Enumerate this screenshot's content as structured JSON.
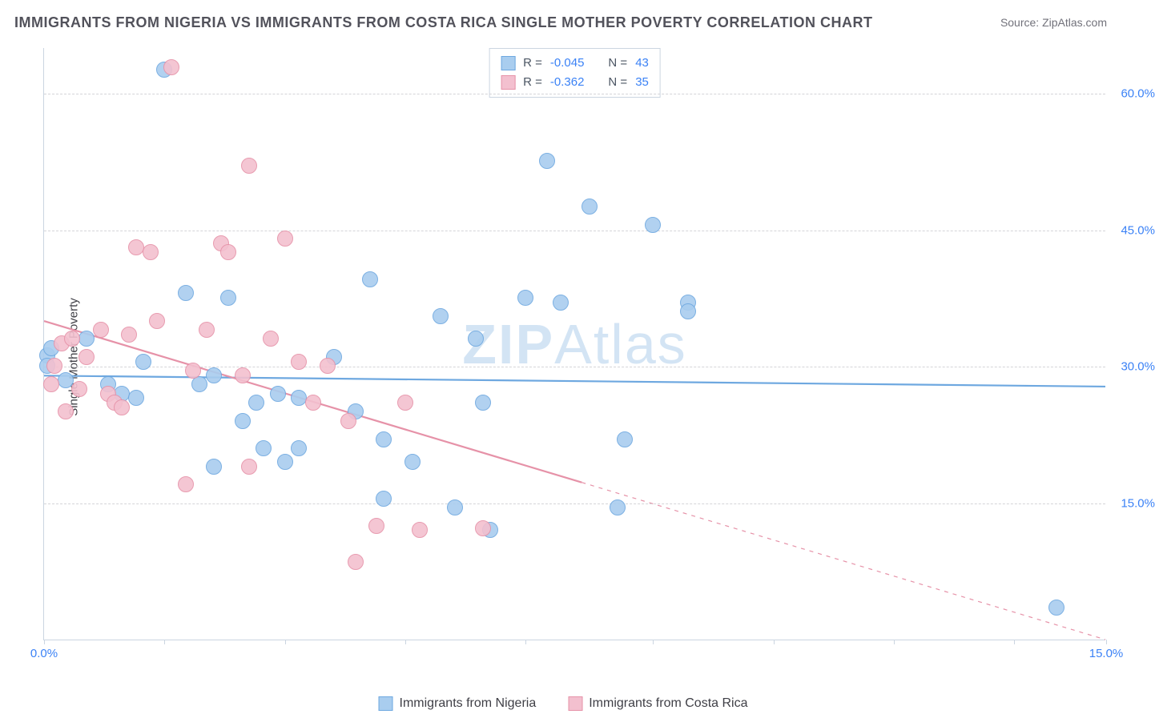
{
  "title": "IMMIGRANTS FROM NIGERIA VS IMMIGRANTS FROM COSTA RICA SINGLE MOTHER POVERTY CORRELATION CHART",
  "source_prefix": "Source: ",
  "source_name": "ZipAtlas.com",
  "ylabel": "Single Mother Poverty",
  "watermark_a": "ZIP",
  "watermark_b": "Atlas",
  "chart": {
    "type": "scatter",
    "xlim": [
      0.0,
      15.0
    ],
    "ylim": [
      0.0,
      65.0
    ],
    "xticks": [
      0.0,
      1.7,
      3.4,
      5.1,
      6.8,
      8.6,
      10.3,
      12.0,
      13.7,
      15.0
    ],
    "xtick_labels_shown": {
      "0.0": "0.0%",
      "15.0": "15.0%"
    },
    "yticks": [
      15.0,
      30.0,
      45.0,
      60.0
    ],
    "ytick_labels": [
      "15.0%",
      "30.0%",
      "45.0%",
      "60.0%"
    ],
    "grid_color": "#d4d4d8",
    "axis_color": "#cbd5e1",
    "background_color": "#ffffff",
    "marker_radius": 10,
    "marker_border": 1.5,
    "marker_fill_opacity": 0.28,
    "trend_line_width": 2.2
  },
  "series": [
    {
      "key": "nigeria",
      "label": "Immigrants from Nigeria",
      "color_border": "#6ea8e0",
      "color_fill": "#a9cdef",
      "R": "-0.045",
      "N": "43",
      "trend": {
        "x1": 0.0,
        "y1": 29.0,
        "x2": 15.0,
        "y2": 27.8,
        "dash_from_x": null
      },
      "points": [
        [
          0.05,
          31.2
        ],
        [
          0.05,
          30.0
        ],
        [
          0.1,
          32.0
        ],
        [
          0.3,
          28.5
        ],
        [
          0.6,
          33.0
        ],
        [
          0.9,
          28.0
        ],
        [
          1.1,
          27.0
        ],
        [
          1.3,
          26.5
        ],
        [
          1.4,
          30.5
        ],
        [
          1.7,
          62.5
        ],
        [
          2.0,
          38.0
        ],
        [
          2.2,
          28.0
        ],
        [
          2.4,
          29.0
        ],
        [
          2.4,
          19.0
        ],
        [
          2.6,
          37.5
        ],
        [
          2.8,
          24.0
        ],
        [
          3.0,
          26.0
        ],
        [
          3.1,
          21.0
        ],
        [
          3.3,
          27.0
        ],
        [
          3.4,
          19.5
        ],
        [
          3.6,
          21.0
        ],
        [
          3.6,
          26.5
        ],
        [
          4.1,
          31.0
        ],
        [
          4.4,
          25.0
        ],
        [
          4.6,
          39.5
        ],
        [
          4.8,
          22.0
        ],
        [
          4.8,
          15.5
        ],
        [
          5.2,
          19.5
        ],
        [
          5.6,
          35.5
        ],
        [
          6.1,
          33.0
        ],
        [
          5.8,
          14.5
        ],
        [
          6.3,
          12.0
        ],
        [
          6.2,
          26.0
        ],
        [
          6.8,
          37.5
        ],
        [
          7.1,
          52.5
        ],
        [
          7.3,
          37.0
        ],
        [
          7.7,
          47.5
        ],
        [
          8.1,
          14.5
        ],
        [
          8.2,
          22.0
        ],
        [
          8.6,
          45.5
        ],
        [
          9.1,
          37.0
        ],
        [
          9.1,
          36.0
        ],
        [
          14.3,
          3.5
        ]
      ]
    },
    {
      "key": "costarica",
      "label": "Immigrants from Costa Rica",
      "color_border": "#e692a8",
      "color_fill": "#f3c0cf",
      "R": "-0.362",
      "N": "35",
      "trend": {
        "x1": 0.0,
        "y1": 35.0,
        "x2": 15.0,
        "y2": 0.0,
        "dash_from_x": 7.6
      },
      "points": [
        [
          0.1,
          28.0
        ],
        [
          0.15,
          30.0
        ],
        [
          0.25,
          32.5
        ],
        [
          0.3,
          25.0
        ],
        [
          0.4,
          33.0
        ],
        [
          0.5,
          27.5
        ],
        [
          0.6,
          31.0
        ],
        [
          0.8,
          34.0
        ],
        [
          0.9,
          27.0
        ],
        [
          1.0,
          26.0
        ],
        [
          1.1,
          25.5
        ],
        [
          1.2,
          33.5
        ],
        [
          1.3,
          43.0
        ],
        [
          1.5,
          42.5
        ],
        [
          1.6,
          35.0
        ],
        [
          1.8,
          62.8
        ],
        [
          2.0,
          17.0
        ],
        [
          2.1,
          29.5
        ],
        [
          2.3,
          34.0
        ],
        [
          2.5,
          43.5
        ],
        [
          2.6,
          42.5
        ],
        [
          2.8,
          29.0
        ],
        [
          2.9,
          19.0
        ],
        [
          2.9,
          52.0
        ],
        [
          3.2,
          33.0
        ],
        [
          3.4,
          44.0
        ],
        [
          3.6,
          30.5
        ],
        [
          3.8,
          26.0
        ],
        [
          4.0,
          30.0
        ],
        [
          4.3,
          24.0
        ],
        [
          4.4,
          8.5
        ],
        [
          4.7,
          12.5
        ],
        [
          5.1,
          26.0
        ],
        [
          5.3,
          12.0
        ],
        [
          6.2,
          12.2
        ]
      ]
    }
  ],
  "legend_top": {
    "r_label": "R =",
    "n_label": "N ="
  }
}
